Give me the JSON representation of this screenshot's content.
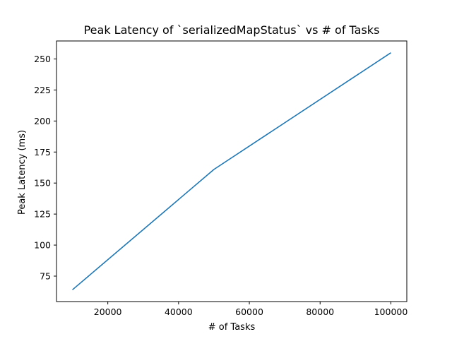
{
  "chart_data": {
    "type": "line",
    "title": "Peak Latency of `serializedMapStatus` vs # of Tasks",
    "xlabel": "# of Tasks",
    "ylabel": "Peak Latency (ms)",
    "xlim": [
      5500,
      104500
    ],
    "ylim": [
      54.5,
      264.5
    ],
    "xticks": [
      20000,
      40000,
      60000,
      80000,
      100000
    ],
    "yticks": [
      75,
      100,
      125,
      150,
      175,
      200,
      225,
      250
    ],
    "grid": false,
    "series": [
      {
        "color": "#1f77b4",
        "x": [
          10000,
          50000,
          100000
        ],
        "y": [
          64,
          161,
          255
        ]
      }
    ]
  }
}
